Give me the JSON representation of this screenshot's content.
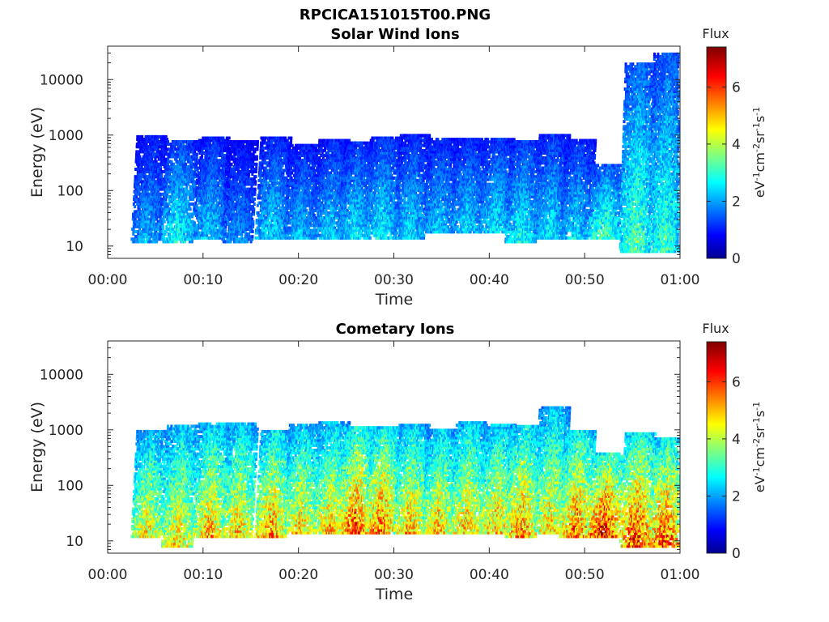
{
  "figure": {
    "main_title": "RPCICA151015T00.PNG"
  },
  "chart_data": [
    {
      "type": "heatmap",
      "title": "Solar Wind Ions",
      "xlabel": "Time",
      "ylabel": "Energy (eV)",
      "xticks": [
        "00:00",
        "00:10",
        "00:20",
        "00:30",
        "00:40",
        "00:50",
        "01:00"
      ],
      "xlim_minutes": [
        0,
        60
      ],
      "yscale": "log",
      "ylim": [
        6,
        40000
      ],
      "yticks": [
        10,
        100,
        1000,
        10000
      ],
      "ytick_labels": [
        "10",
        "100",
        "1000",
        "10000"
      ],
      "colorbar": {
        "title": "Flux",
        "label": "eV-1cm-2sr-1s-1",
        "range": [
          0,
          7.4
        ],
        "ticks": [
          0,
          2,
          4,
          6
        ],
        "tick_labels": [
          "0",
          "2",
          "4",
          "6"
        ],
        "colormap": "jet"
      },
      "bursts": [
        {
          "t": 4.3,
          "emin": 12,
          "emax": 950,
          "peak": 2.2
        },
        {
          "t": 7.5,
          "emin": 12,
          "emax": 800,
          "peak": 2.8
        },
        {
          "t": 10.8,
          "emin": 14,
          "emax": 900,
          "peak": 2.4
        },
        {
          "t": 13.8,
          "emin": 12,
          "emax": 800,
          "peak": 2.0
        },
        {
          "t": 17.3,
          "emin": 14,
          "emax": 900,
          "peak": 2.5
        },
        {
          "t": 20.3,
          "emin": 14,
          "emax": 700,
          "peak": 2.3
        },
        {
          "t": 23.4,
          "emin": 14,
          "emax": 850,
          "peak": 2.4
        },
        {
          "t": 26.0,
          "emin": 14,
          "emax": 750,
          "peak": 2.6
        },
        {
          "t": 28.8,
          "emin": 14,
          "emax": 950,
          "peak": 2.7
        },
        {
          "t": 31.8,
          "emin": 14,
          "emax": 1000,
          "peak": 2.5
        },
        {
          "t": 34.8,
          "emin": 18,
          "emax": 900,
          "peak": 2.4
        },
        {
          "t": 37.8,
          "emin": 18,
          "emax": 900,
          "peak": 2.5
        },
        {
          "t": 40.8,
          "emin": 18,
          "emax": 900,
          "peak": 2.6
        },
        {
          "t": 43.5,
          "emin": 12,
          "emax": 800,
          "peak": 2.8
        },
        {
          "t": 46.5,
          "emin": 14,
          "emax": 1000,
          "peak": 2.6
        },
        {
          "t": 49.2,
          "emin": 14,
          "emax": 800,
          "peak": 2.5
        },
        {
          "t": 52.2,
          "emin": 14,
          "emax": 300,
          "peak": 3.3
        },
        {
          "t": 55.5,
          "emin": 8,
          "emax": 20000,
          "peak": 3.4
        },
        {
          "t": 58.5,
          "emin": 8,
          "emax": 30000,
          "peak": 3.2
        }
      ]
    },
    {
      "type": "heatmap",
      "title": "Cometary Ions",
      "xlabel": "Time",
      "ylabel": "Energy (eV)",
      "xticks": [
        "00:00",
        "00:10",
        "00:20",
        "00:30",
        "00:40",
        "00:50",
        "01:00"
      ],
      "xlim_minutes": [
        0,
        60
      ],
      "yscale": "log",
      "ylim": [
        6,
        40000
      ],
      "yticks": [
        10,
        100,
        1000,
        10000
      ],
      "ytick_labels": [
        "10",
        "100",
        "1000",
        "10000"
      ],
      "colorbar": {
        "title": "Flux",
        "label": "eV-1cm-2sr-1s-1",
        "range": [
          0,
          7.4
        ],
        "ticks": [
          0,
          2,
          4,
          6
        ],
        "tick_labels": [
          "0",
          "2",
          "4",
          "6"
        ],
        "colormap": "jet"
      },
      "bursts": [
        {
          "t": 4.3,
          "emin": 12,
          "emax": 1000,
          "peak": 4.6
        },
        {
          "t": 7.5,
          "emin": 8,
          "emax": 1200,
          "peak": 4.8
        },
        {
          "t": 10.8,
          "emin": 12,
          "emax": 1400,
          "peak": 5.0
        },
        {
          "t": 13.8,
          "emin": 12,
          "emax": 1300,
          "peak": 4.9
        },
        {
          "t": 17.3,
          "emin": 12,
          "emax": 1000,
          "peak": 5.3
        },
        {
          "t": 20.3,
          "emin": 14,
          "emax": 1300,
          "peak": 4.8
        },
        {
          "t": 23.4,
          "emin": 14,
          "emax": 1400,
          "peak": 4.9
        },
        {
          "t": 26.0,
          "emin": 14,
          "emax": 1200,
          "peak": 5.8
        },
        {
          "t": 28.8,
          "emin": 14,
          "emax": 1200,
          "peak": 5.6
        },
        {
          "t": 31.8,
          "emin": 14,
          "emax": 1300,
          "peak": 5.0
        },
        {
          "t": 34.8,
          "emin": 14,
          "emax": 1000,
          "peak": 4.9
        },
        {
          "t": 37.8,
          "emin": 14,
          "emax": 1400,
          "peak": 5.0
        },
        {
          "t": 40.8,
          "emin": 14,
          "emax": 1300,
          "peak": 5.0
        },
        {
          "t": 43.5,
          "emin": 12,
          "emax": 1200,
          "peak": 5.4
        },
        {
          "t": 46.5,
          "emin": 14,
          "emax": 2500,
          "peak": 4.8
        },
        {
          "t": 49.2,
          "emin": 12,
          "emax": 1000,
          "peak": 5.6
        },
        {
          "t": 52.2,
          "emin": 12,
          "emax": 400,
          "peak": 6.4
        },
        {
          "t": 55.5,
          "emin": 8,
          "emax": 900,
          "peak": 6.1
        },
        {
          "t": 58.5,
          "emin": 8,
          "emax": 700,
          "peak": 6.0
        }
      ]
    }
  ]
}
